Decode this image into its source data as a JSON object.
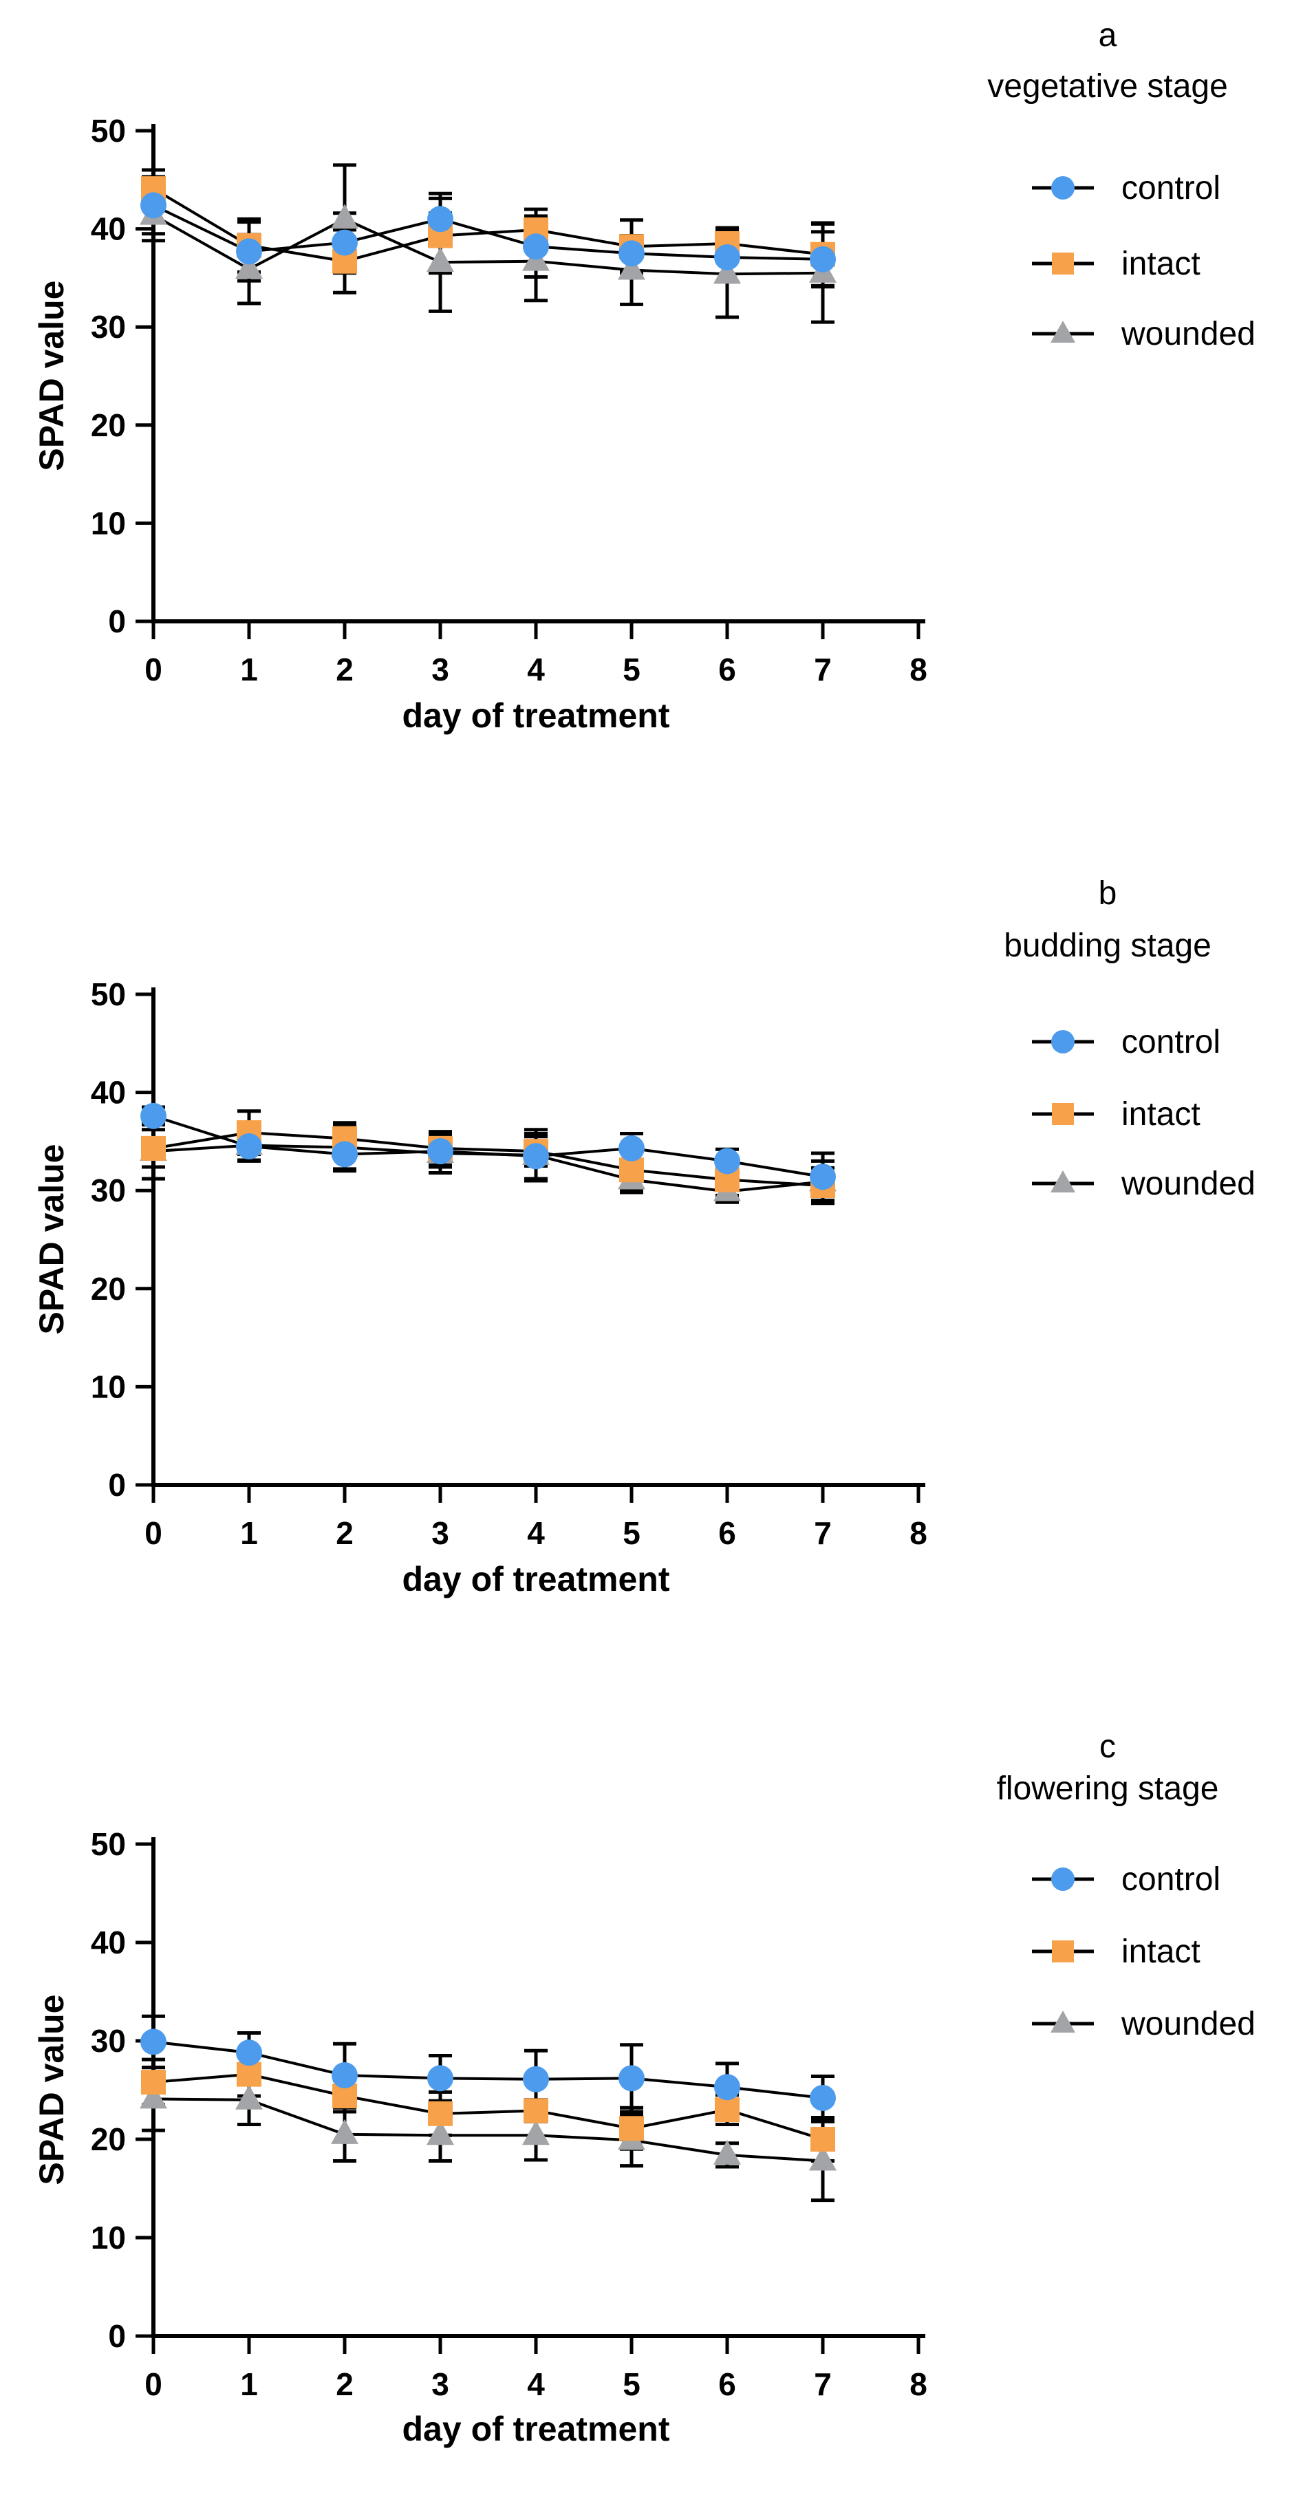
{
  "figure": {
    "y_axis_label": "SPAD value",
    "x_axis_label": "day of treatment",
    "y_ticks": [
      0,
      10,
      20,
      30,
      40,
      50
    ],
    "x_ticks": [
      0,
      1,
      2,
      3,
      4,
      5,
      6,
      7,
      8
    ]
  },
  "colors": {
    "control": "#4d9bec",
    "intact": "#f7a24b",
    "wounded": "#a2a4a7",
    "line": "#000000",
    "axis": "#000000",
    "text": "#000000"
  },
  "chart_data": [
    {
      "type": "line",
      "panel_letter": "a",
      "title": "a",
      "subtitle": "vegetative stage",
      "xlabel": "day of treatment",
      "ylabel": "SPAD value",
      "xlim": [
        0,
        8
      ],
      "ylim": [
        0,
        50
      ],
      "legend_position": "right",
      "x": [
        0,
        1,
        2,
        3,
        4,
        5,
        6,
        7
      ],
      "series": [
        {
          "name": "control",
          "marker": "circle",
          "color": "#4d9bec",
          "values": [
            42.4,
            37.7,
            38.6,
            41.0,
            38.2,
            37.5,
            37.1,
            36.9
          ],
          "errors": [
            2.9,
            3.0,
            3.0,
            2.6,
            3.1,
            1.8,
            2.5,
            2.8
          ]
        },
        {
          "name": "intact",
          "marker": "square",
          "color": "#f7a24b",
          "values": [
            44.1,
            38.3,
            36.7,
            39.3,
            39.9,
            38.2,
            38.5,
            37.4
          ],
          "errors": [
            1.9,
            2.7,
            3.2,
            3.8,
            2.1,
            2.7,
            1.6,
            3.2
          ]
        },
        {
          "name": "wounded",
          "marker": "triangle",
          "color": "#a2a4a7",
          "values": [
            41.4,
            35.9,
            41.0,
            36.6,
            36.7,
            35.8,
            35.4,
            35.5
          ],
          "errors": [
            2.6,
            3.5,
            5.5,
            5.0,
            4.0,
            3.5,
            4.4,
            5.0
          ]
        }
      ]
    },
    {
      "type": "line",
      "panel_letter": "b",
      "title": "b",
      "subtitle": "budding stage",
      "xlabel": "day of treatment",
      "ylabel": "SPAD value",
      "xlim": [
        0,
        8
      ],
      "ylim": [
        0,
        50
      ],
      "legend_position": "right",
      "x": [
        0,
        1,
        2,
        3,
        4,
        5,
        6,
        7
      ],
      "series": [
        {
          "name": "control",
          "marker": "circle",
          "color": "#4d9bec",
          "values": [
            37.6,
            34.5,
            33.7,
            34.0,
            33.5,
            34.3,
            33.0,
            31.4
          ],
          "errors": [
            0.9,
            1.4,
            1.7,
            1.6,
            2.3,
            1.5,
            1.2,
            2.4
          ]
        },
        {
          "name": "intact",
          "marker": "square",
          "color": "#f7a24b",
          "values": [
            34.3,
            35.9,
            35.3,
            34.3,
            34.0,
            32.1,
            31.1,
            30.5
          ],
          "errors": [
            1.9,
            2.2,
            1.6,
            1.7,
            1.5,
            2.1,
            1.6,
            1.8
          ]
        },
        {
          "name": "wounded",
          "marker": "triangle",
          "color": "#a2a4a7",
          "values": [
            34.0,
            34.6,
            34.4,
            33.8,
            33.6,
            31.1,
            29.9,
            30.9
          ],
          "errors": [
            2.8,
            1.6,
            2.2,
            2.0,
            2.6,
            1.3,
            1.1,
            2.1
          ]
        }
      ]
    },
    {
      "type": "line",
      "panel_letter": "c",
      "title": "c",
      "subtitle": "flowering stage",
      "xlabel": "day of treatment",
      "ylabel": "SPAD value",
      "xlim": [
        0,
        8
      ],
      "ylim": [
        0,
        50
      ],
      "legend_position": "right",
      "x": [
        0,
        1,
        2,
        3,
        4,
        5,
        6,
        7
      ],
      "series": [
        {
          "name": "control",
          "marker": "circle",
          "color": "#4d9bec",
          "values": [
            29.9,
            28.8,
            26.5,
            26.2,
            26.1,
            26.2,
            25.3,
            24.2
          ],
          "errors": [
            2.6,
            2.0,
            3.2,
            2.3,
            2.9,
            3.4,
            2.4,
            2.2
          ]
        },
        {
          "name": "intact",
          "marker": "square",
          "color": "#f7a24b",
          "values": [
            25.8,
            26.6,
            24.4,
            22.6,
            22.9,
            21.1,
            23.0,
            20.0
          ],
          "errors": [
            2.3,
            2.2,
            1.6,
            2.2,
            1.1,
            2.1,
            1.5,
            2.2
          ]
        },
        {
          "name": "wounded",
          "marker": "triangle",
          "color": "#a2a4a7",
          "values": [
            24.1,
            24.0,
            20.5,
            20.4,
            20.4,
            19.9,
            18.4,
            17.8
          ],
          "errors": [
            3.2,
            2.5,
            2.7,
            2.6,
            2.5,
            2.6,
            1.2,
            4.0
          ]
        }
      ]
    }
  ]
}
